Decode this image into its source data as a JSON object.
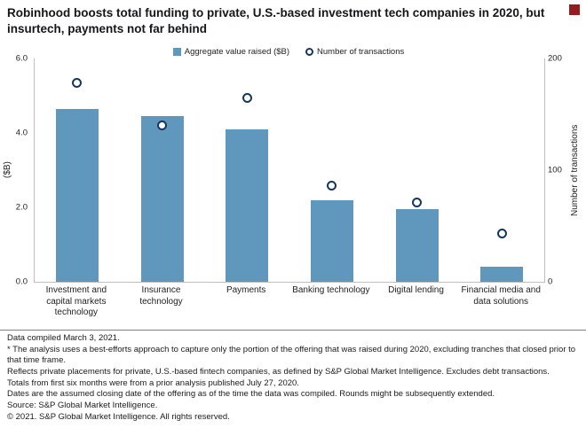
{
  "page": {
    "background": "#ffffff"
  },
  "branding": {
    "logo_square_color": "#951b1e"
  },
  "title": "Robinhood boosts total funding to private, U.S.-based investment tech companies in 2020, but insurtech, payments not far behind",
  "chart_data": {
    "type": "bar",
    "title": "Robinhood boosts total funding to private, U.S.-based investment tech companies in 2020, but insurtech, payments not far behind",
    "categories": [
      "Investment and capital markets technology",
      "Insurance technology",
      "Payments",
      "Banking technology",
      "Digital lending",
      "Financial media and data solutions"
    ],
    "series": [
      {
        "name": "Aggregate value raised ($B)",
        "type": "bar",
        "axis": "left",
        "values": [
          4.65,
          4.45,
          4.1,
          2.2,
          1.95,
          0.4
        ]
      },
      {
        "name": "Number of transactions",
        "type": "scatter",
        "axis": "right",
        "values": [
          178,
          140,
          165,
          86,
          71,
          43
        ]
      }
    ],
    "left_axis": {
      "label": "($B)",
      "min": 0,
      "max": 6,
      "tick_labels": [
        "6.0",
        "4.0",
        "2.0",
        "0.0"
      ]
    },
    "right_axis": {
      "label": "Number of transactions",
      "min": 0,
      "max": 200,
      "tick_labels": [
        "200",
        "100",
        "0"
      ]
    },
    "legend": [
      {
        "label": "Aggregate value raised ($B)",
        "marker": "square"
      },
      {
        "label": "Number of transactions",
        "marker": "open-circle"
      }
    ],
    "legend_position": "top-center",
    "grid": false,
    "bar_color": "#5f97bd",
    "marker_border_color": "#17365d",
    "marker_fill_color": "#ffffff"
  },
  "footer": {
    "lines": [
      "Data compiled March 3, 2021.",
      "* The analysis uses a best-efforts approach to capture only the portion of the offering that was raised during 2020, excluding tranches that closed prior to that time frame.",
      "Reflects private placements for private, U.S.-based fintech companies, as defined by S&P Global Market Intelligence. Excludes debt transactions.",
      "Totals from first six months were from a prior analysis published July 27, 2020.",
      "Dates are the assumed closing date of the offering as of the time the data was compiled. Rounds might be subsequently extended.",
      "Source: S&P Global Market Intelligence.",
      "© 2021. S&P Global Market Intelligence. All rights reserved."
    ]
  }
}
